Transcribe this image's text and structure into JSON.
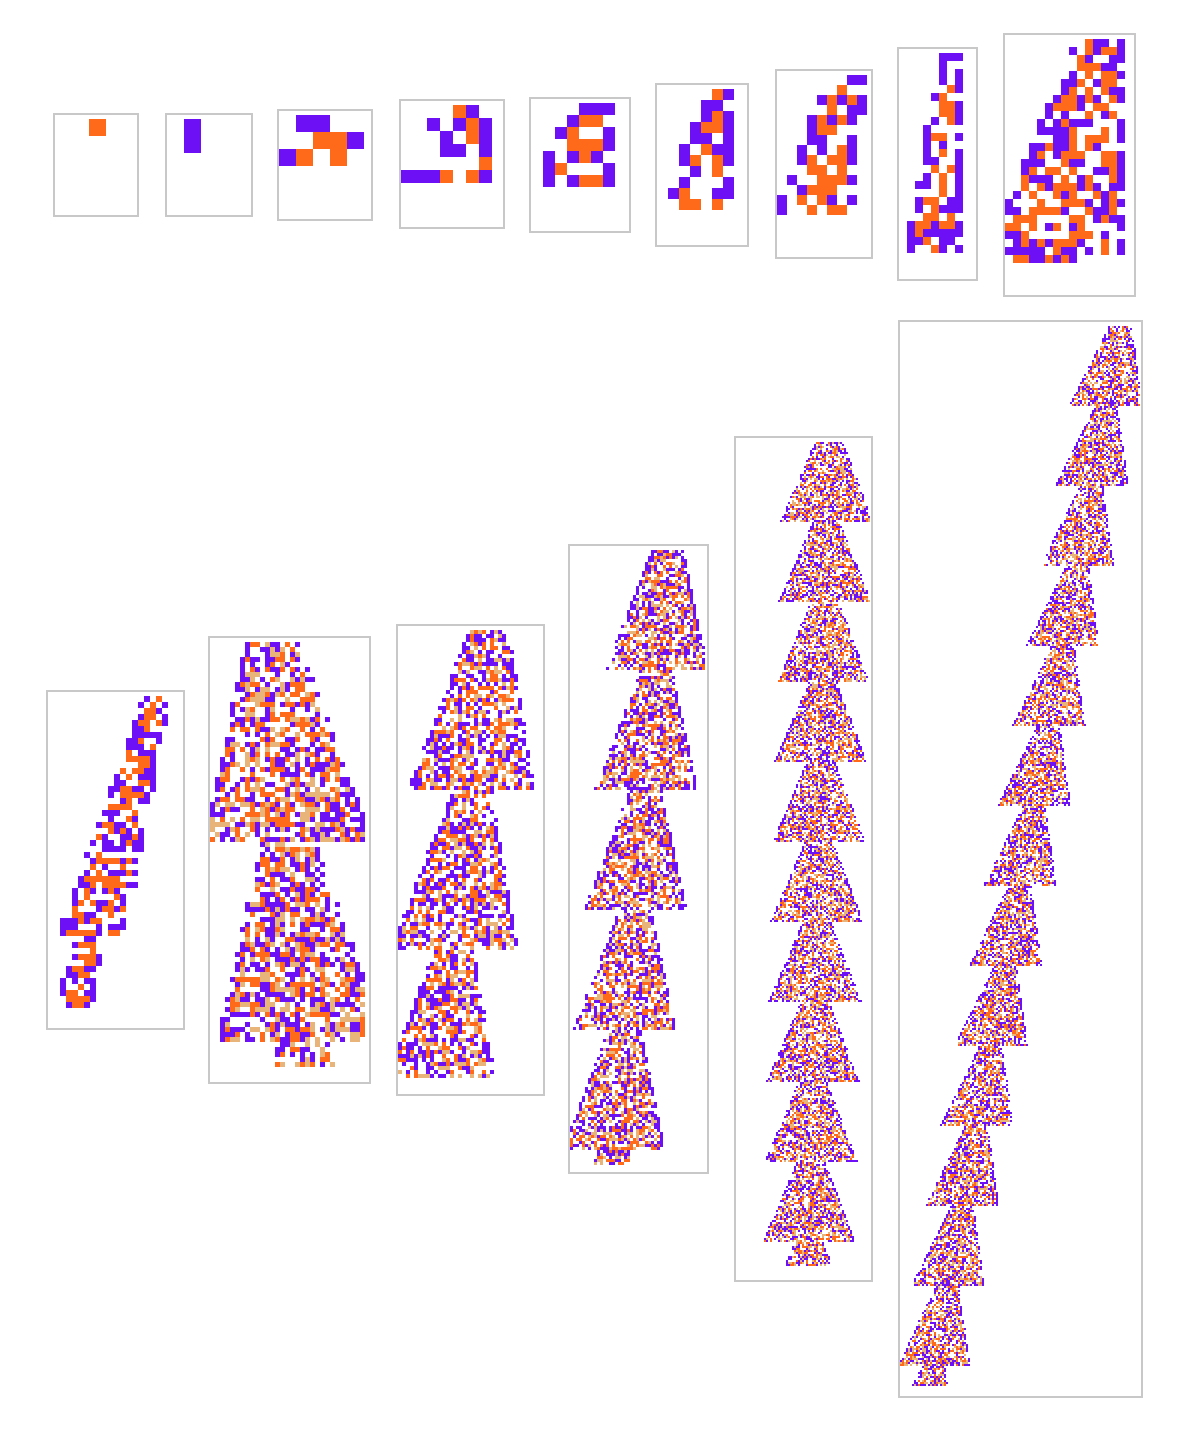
{
  "colors": {
    "orange": "#ff6a1a",
    "purple": "#6e10f5",
    "tan": "#e8b47a",
    "frame_border": "#c8c8c8",
    "background": "#ffffff"
  },
  "figure": {
    "description_kind": "cellular-automaton evolution panels",
    "row_1_panel_count": 9,
    "row_2_panel_count": 6
  }
}
